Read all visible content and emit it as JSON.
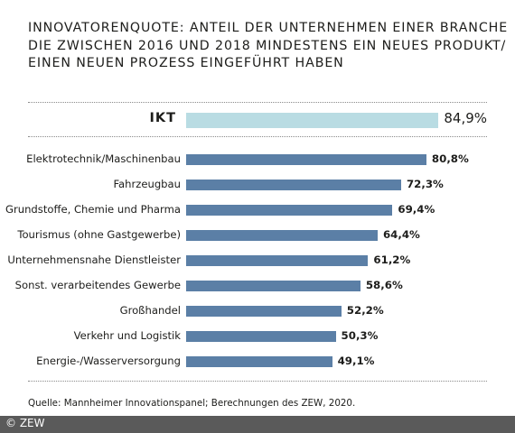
{
  "title_lines": [
    "INNOVATORENQUOTE: ANTEIL DER UNTERNEHMEN EINER BRANCHE",
    "DIE ZWISCHEN 2016 UND 2018 MINDESTENS EIN NEUES PRODUKT/",
    "EINEN NEUEN PROZESS EINGEFÜHRT HABEN"
  ],
  "source": "Quelle: Mannheimer Innovationspanel; Berechnungen des ZEW, 2020.",
  "copyright": "© ZEW",
  "colors": {
    "highlight_bar": "#b9dce3",
    "bar": "#5b7fa6"
  },
  "chart_data": {
    "type": "bar",
    "orientation": "horizontal",
    "title": "INNOVATORENQUOTE: ANTEIL DER UNTERNEHMEN EINER BRANCHE DIE ZWISCHEN 2016 UND 2018 MINDESTENS EIN NEUES PRODUKT/ EINEN NEUEN PROZESS EINGEFÜHRT HABEN",
    "highlight": {
      "category": "IKT",
      "value": 84.9,
      "label": "84,9%"
    },
    "categories": [
      "Elektrotechnik/Maschinenbau",
      "Fahrzeugbau",
      "Grundstoffe, Chemie und Pharma",
      "Tourismus (ohne Gastgewerbe)",
      "Unternehmensnahe Dienstleister",
      "Sonst. verarbeitendes Gewerbe",
      "Großhandel",
      "Verkehr und Logistik",
      "Energie-/Wasserversorgung"
    ],
    "values": [
      80.8,
      72.3,
      69.4,
      64.4,
      61.2,
      58.6,
      52.2,
      50.3,
      49.1
    ],
    "value_labels": [
      "80,8%",
      "72,3%",
      "69,4%",
      "64,4%",
      "61,2%",
      "58,6%",
      "52,2%",
      "50,3%",
      "49,1%"
    ],
    "xlim": [
      0,
      100
    ],
    "grid": false,
    "legend": "none"
  }
}
